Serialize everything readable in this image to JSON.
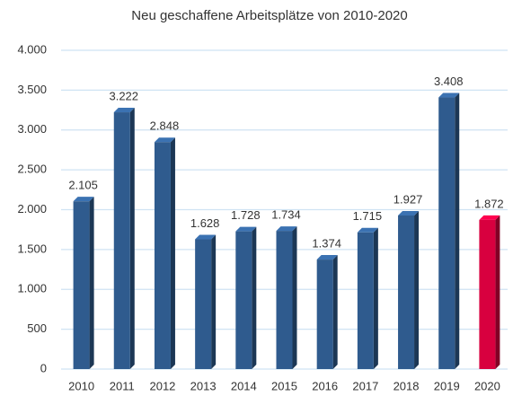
{
  "chart_data": {
    "type": "bar3d",
    "title": "Neu geschaffene Arbeitsplätze von 2010-2020",
    "categories": [
      "2010",
      "2011",
      "2012",
      "2013",
      "2014",
      "2015",
      "2016",
      "2017",
      "2018",
      "2019",
      "2020"
    ],
    "values": [
      2105,
      3222,
      2848,
      1628,
      1728,
      1734,
      1374,
      1715,
      1927,
      3408,
      1872
    ],
    "value_labels": [
      "2.105",
      "3.222",
      "2.848",
      "1.628",
      "1.728",
      "1.734",
      "1.374",
      "1.715",
      "1.927",
      "3.408",
      "1.872"
    ],
    "colors": [
      "#2f5b8e",
      "#2f5b8e",
      "#2f5b8e",
      "#2f5b8e",
      "#2f5b8e",
      "#2f5b8e",
      "#2f5b8e",
      "#2f5b8e",
      "#2f5b8e",
      "#2f5b8e",
      "#d8003f"
    ],
    "ylim": [
      0,
      4000
    ],
    "yticks": [
      0,
      500,
      {
        "value": 1000,
        "label": "1.000"
      },
      {
        "value": 1500,
        "label": "1.500"
      },
      {
        "value": 2000,
        "label": "2.000"
      },
      {
        "value": 2500,
        "label": "2.500"
      },
      {
        "value": 3000,
        "label": "3.000"
      },
      {
        "value": 3500,
        "label": "3.500"
      },
      {
        "value": 4000,
        "label": "4.000"
      }
    ],
    "grid": true
  }
}
